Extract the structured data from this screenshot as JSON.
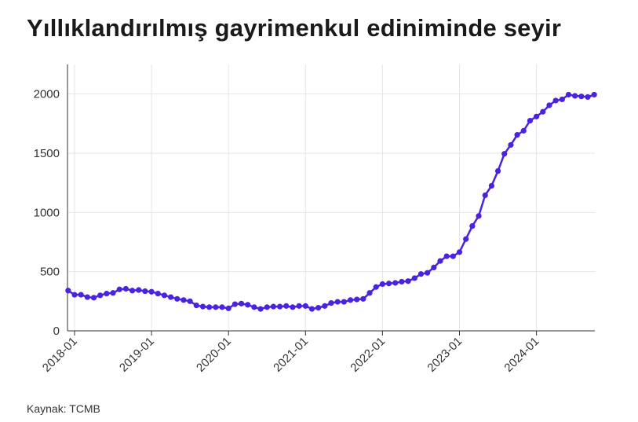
{
  "title": "Yıllıklandırılmış gayrimenkul ediniminde seyir",
  "source": "Kaynak: TCMB",
  "colors": {
    "series": "#4a22e0",
    "grid": "#e6e6e6",
    "axis": "#333333"
  },
  "chart_data": {
    "type": "line",
    "title": "Yıllıklandırılmış gayrimenkul ediniminde seyir",
    "xlabel": "",
    "ylabel": "",
    "ylim": [
      0,
      2250
    ],
    "yticks": [
      0,
      500,
      1000,
      1500,
      2000
    ],
    "xlim": [
      "2017-12",
      "2024-10"
    ],
    "xticks": [
      "2018-01",
      "2019-01",
      "2020-01",
      "2021-01",
      "2022-01",
      "2023-01",
      "2024-01"
    ],
    "grid": true,
    "series": [
      {
        "x": [
          "2017-12",
          "2018-01",
          "2018-02",
          "2018-03",
          "2018-04",
          "2018-05",
          "2018-06",
          "2018-07",
          "2018-08",
          "2018-09",
          "2018-10",
          "2018-11",
          "2018-12",
          "2019-01",
          "2019-02",
          "2019-03",
          "2019-04",
          "2019-05",
          "2019-06",
          "2019-07",
          "2019-08",
          "2019-09",
          "2019-10",
          "2019-11",
          "2019-12",
          "2020-01",
          "2020-02",
          "2020-03",
          "2020-04",
          "2020-05",
          "2020-06",
          "2020-07",
          "2020-08",
          "2020-09",
          "2020-10",
          "2020-11",
          "2020-12",
          "2021-01",
          "2021-02",
          "2021-03",
          "2021-04",
          "2021-05",
          "2021-06",
          "2021-07",
          "2021-08",
          "2021-09",
          "2021-10",
          "2021-11",
          "2021-12",
          "2022-01",
          "2022-02",
          "2022-03",
          "2022-04",
          "2022-05",
          "2022-06",
          "2022-07",
          "2022-08",
          "2022-09",
          "2022-10",
          "2022-11",
          "2022-12",
          "2023-01",
          "2023-02",
          "2023-03",
          "2023-04",
          "2023-05",
          "2023-06",
          "2023-07",
          "2023-08",
          "2023-09",
          "2023-10",
          "2023-11",
          "2023-12",
          "2024-01",
          "2024-02",
          "2024-03",
          "2024-04",
          "2024-05",
          "2024-06",
          "2024-07",
          "2024-08",
          "2024-09",
          "2024-10"
        ],
        "values": [
          340,
          305,
          305,
          285,
          280,
          300,
          315,
          320,
          350,
          355,
          340,
          345,
          335,
          330,
          315,
          300,
          285,
          270,
          260,
          250,
          215,
          205,
          200,
          200,
          200,
          190,
          225,
          230,
          220,
          200,
          185,
          200,
          205,
          205,
          210,
          200,
          210,
          210,
          185,
          195,
          210,
          235,
          245,
          245,
          260,
          265,
          270,
          320,
          370,
          395,
          400,
          405,
          415,
          420,
          445,
          480,
          490,
          535,
          590,
          630,
          630,
          665,
          775,
          885,
          970,
          1145,
          1225,
          1350,
          1495,
          1570,
          1655,
          1690,
          1775,
          1810,
          1850,
          1905,
          1945,
          1955,
          1995,
          1985,
          1980,
          1975,
          1995
        ]
      }
    ]
  }
}
